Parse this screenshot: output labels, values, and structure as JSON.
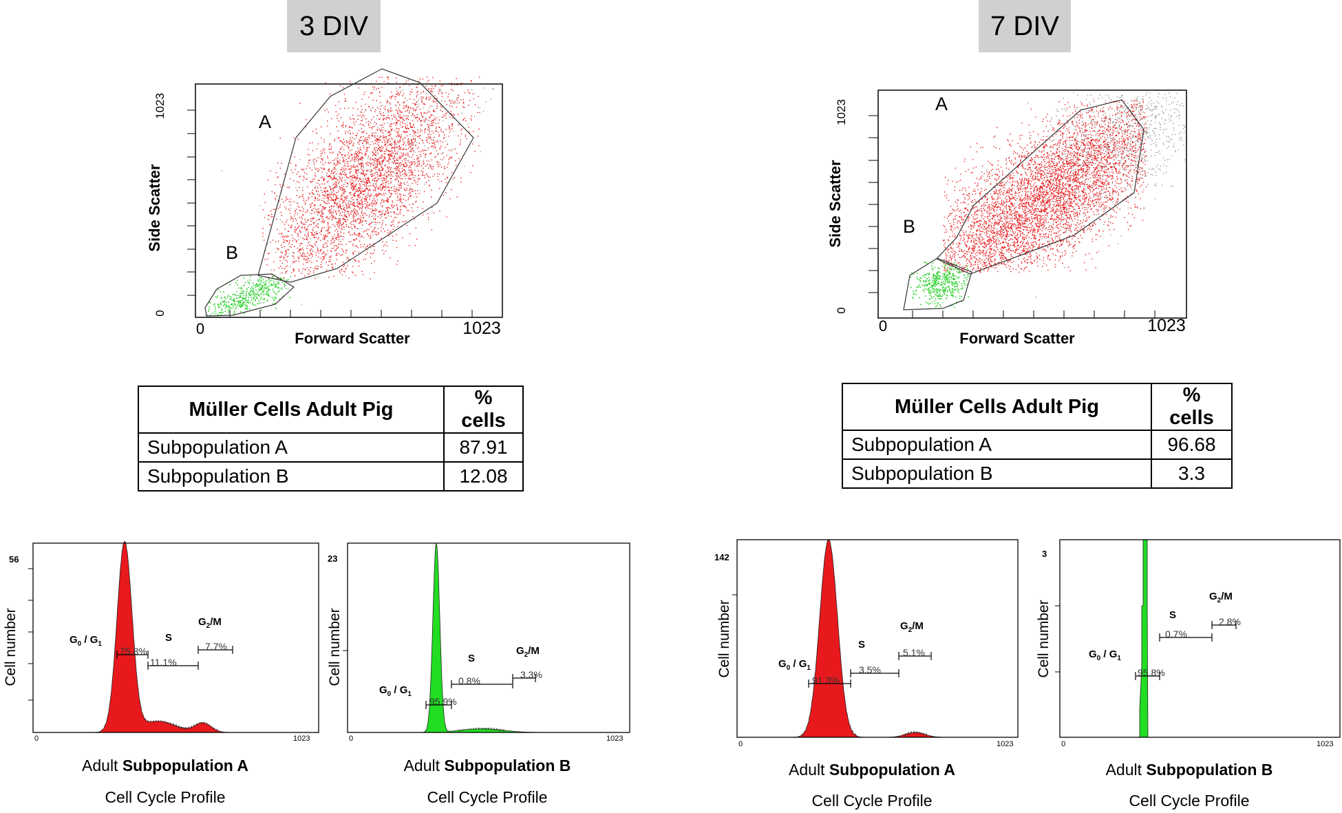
{
  "panels": [
    {
      "badge": "3 DIV",
      "scatter": {
        "xlabel": "Forward Scatter",
        "ylabel": "Side Scatter",
        "x_tick_min": "0",
        "x_tick_max": "1023",
        "y_tick_min": "0",
        "y_tick_max": "1023",
        "gate_a_label": "A",
        "gate_b_label": "B",
        "colors": {
          "a": "#e8191c",
          "b": "#2fd12f",
          "outside": "#888888"
        }
      },
      "table": {
        "header": [
          "Müller Cells Adult Pig",
          "% cells"
        ],
        "rows": [
          [
            "Subpopulation A",
            "87.91"
          ],
          [
            "Subpopulation B",
            "12.08"
          ]
        ]
      },
      "histograms": [
        {
          "color": "#e8191c",
          "ylabel": "Cell number",
          "ymax_label": "56",
          "x0": "0",
          "x1": "1023",
          "g0_label_main": "G",
          "g0_label_sub": "0",
          "g0_label_mid": " / G",
          "g0_label_sub2": "1",
          "g0_value": "75.8%",
          "s_label": "S",
          "s_value": "11.1%",
          "g2_label_main": "G",
          "g2_label_sub": "2",
          "g2_label_tail": "/M",
          "g2_value": "7.7%",
          "caption_prefix": "Adult",
          "caption_bold": "Subpopulation A",
          "caption_sub": "Cell Cycle Profile"
        },
        {
          "color": "#22dd22",
          "ylabel": "Cell number",
          "ymax_label": "23",
          "x0": "0",
          "x1": "1023",
          "g0_label_main": "G",
          "g0_label_sub": "0",
          "g0_label_mid": " / G",
          "g0_label_sub2": "1",
          "g0_value": "95.9%",
          "s_label": "S",
          "s_value": "0.8%",
          "g2_label_main": "G",
          "g2_label_sub": "2",
          "g2_label_tail": "/M",
          "g2_value": "3.3%",
          "caption_prefix": "Adult",
          "caption_bold": "Subpopulation B",
          "caption_sub": "Cell Cycle Profile"
        }
      ]
    },
    {
      "badge": "7 DIV",
      "scatter": {
        "xlabel": "Forward Scatter",
        "ylabel": "Side Scatter",
        "x_tick_min": "0",
        "x_tick_max": "1023",
        "y_tick_min": "0",
        "y_tick_max": "1023",
        "gate_a_label": "A",
        "gate_b_label": "B",
        "colors": {
          "a": "#e8191c",
          "b": "#2fd12f",
          "outside": "#888888"
        }
      },
      "table": {
        "header": [
          "Müller Cells Adult Pig",
          "% cells"
        ],
        "rows": [
          [
            "Subpopulation A",
            "96.68"
          ],
          [
            "Subpopulation B",
            "3.3"
          ]
        ]
      },
      "histograms": [
        {
          "color": "#e8191c",
          "ylabel": "Cell number",
          "ymax_label": "142",
          "x0": "0",
          "x1": "1023",
          "g0_label_main": "G",
          "g0_label_sub": "0",
          "g0_label_mid": " / G",
          "g0_label_sub2": "1",
          "g0_value": "91.3%",
          "s_label": "S",
          "s_value": "3.5%",
          "g2_label_main": "G",
          "g2_label_sub": "2",
          "g2_label_tail": "/M",
          "g2_value": "5.1%",
          "caption_prefix": "Adult",
          "caption_bold": "Subpopulation A",
          "caption_sub": "Cell Cycle Profile"
        },
        {
          "color": "#22dd22",
          "ylabel": "Cell number",
          "ymax_label": "3",
          "x0": "0",
          "x1": "1023",
          "g0_label_main": "G",
          "g0_label_sub": "0",
          "g0_label_mid": " / G",
          "g0_label_sub2": "1",
          "g0_value": "95.8%",
          "s_label": "S",
          "s_value": "0.7%",
          "g2_label_main": "G",
          "g2_label_sub": "2",
          "g2_label_tail": "/M",
          "g2_value": "2.8%",
          "caption_prefix": "Adult",
          "caption_bold": "Subpopulation B",
          "caption_sub": "Cell Cycle Profile"
        }
      ]
    }
  ],
  "chart_data": [
    {
      "type": "scatter",
      "title": "3 DIV",
      "xlabel": "Forward Scatter",
      "ylabel": "Side Scatter",
      "xlim": [
        0,
        1023
      ],
      "ylim": [
        0,
        1023
      ],
      "gates": [
        "A",
        "B"
      ]
    },
    {
      "type": "table",
      "title": "3 DIV Müller Cells Adult Pig",
      "columns": [
        "Müller Cells Adult Pig",
        "% cells"
      ],
      "rows": [
        [
          "Subpopulation A",
          87.91
        ],
        [
          "Subpopulation B",
          12.08
        ]
      ]
    },
    {
      "type": "area",
      "title": "3 DIV Adult Subpopulation A Cell Cycle Profile",
      "ylabel": "Cell number",
      "xlim": [
        0,
        1023
      ],
      "ymax": 56,
      "phases": [
        {
          "name": "G0 / G1",
          "percent": 75.8
        },
        {
          "name": "S",
          "percent": 11.1
        },
        {
          "name": "G2/M",
          "percent": 7.7
        }
      ]
    },
    {
      "type": "area",
      "title": "3 DIV Adult Subpopulation B Cell Cycle Profile",
      "ylabel": "Cell number",
      "xlim": [
        0,
        1023
      ],
      "ymax": 23,
      "phases": [
        {
          "name": "G0 / G1",
          "percent": 95.9
        },
        {
          "name": "S",
          "percent": 0.8
        },
        {
          "name": "G2/M",
          "percent": 3.3
        }
      ]
    },
    {
      "type": "scatter",
      "title": "7 DIV",
      "xlabel": "Forward Scatter",
      "ylabel": "Side Scatter",
      "xlim": [
        0,
        1023
      ],
      "ylim": [
        0,
        1023
      ],
      "gates": [
        "A",
        "B"
      ]
    },
    {
      "type": "table",
      "title": "7 DIV Müller Cells Adult Pig",
      "columns": [
        "Müller Cells Adult Pig",
        "% cells"
      ],
      "rows": [
        [
          "Subpopulation A",
          96.68
        ],
        [
          "Subpopulation B",
          3.3
        ]
      ]
    },
    {
      "type": "area",
      "title": "7 DIV Adult Subpopulation A Cell Cycle Profile",
      "ylabel": "Cell number",
      "xlim": [
        0,
        1023
      ],
      "ymax": 142,
      "phases": [
        {
          "name": "G0 / G1",
          "percent": 91.3
        },
        {
          "name": "S",
          "percent": 3.5
        },
        {
          "name": "G2/M",
          "percent": 5.1
        }
      ]
    },
    {
      "type": "area",
      "title": "7 DIV Adult Subpopulation B Cell Cycle Profile",
      "ylabel": "Cell number",
      "xlim": [
        0,
        1023
      ],
      "ymax": 3,
      "phases": [
        {
          "name": "G0 / G1",
          "percent": 95.8
        },
        {
          "name": "S",
          "percent": 0.7
        },
        {
          "name": "G2/M",
          "percent": 2.8
        }
      ]
    }
  ]
}
